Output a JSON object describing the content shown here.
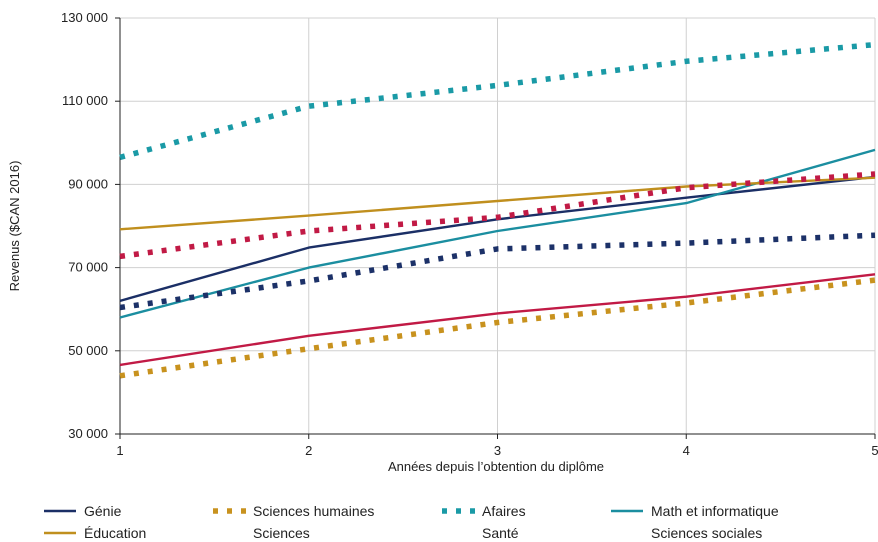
{
  "chart_data": {
    "type": "line",
    "xlabel": "Années depuis l’obtention du diplôme",
    "ylabel": "Revenus ($CAN 2016)",
    "x": [
      1,
      2,
      3,
      4,
      5
    ],
    "xlim": [
      1,
      5
    ],
    "ylim": [
      30000,
      130000
    ],
    "x_ticks": [
      "1",
      "2",
      "3",
      "4",
      "5"
    ],
    "y_ticks": [
      "30 000",
      "50 000",
      "70 000",
      "90 000",
      "110 000",
      "130 000"
    ],
    "y_tick_values": [
      30000,
      50000,
      70000,
      90000,
      110000,
      130000
    ],
    "grid": true,
    "legend_position": "bottom",
    "series": [
      {
        "name": "Génie",
        "values": [
          62000,
          74800,
          81600,
          86800,
          91800
        ],
        "color": "#1b2f66",
        "style": "solid",
        "in_legend": true
      },
      {
        "name": "Sciences humaines",
        "values": [
          44000,
          50500,
          56800,
          61500,
          67000
        ],
        "color": "#c8921e",
        "style": "dotted",
        "in_legend": true
      },
      {
        "name": "Afaires",
        "values": [
          96500,
          108800,
          113800,
          119600,
          123600
        ],
        "color": "#1a9aa6",
        "style": "dotted",
        "in_legend": true
      },
      {
        "name": "Math et informatique",
        "values": [
          58000,
          70000,
          78800,
          85500,
          98300
        ],
        "color": "#1b8ea0",
        "style": "solid",
        "in_legend": true
      },
      {
        "name": "Éducation",
        "values": [
          79200,
          82500,
          86000,
          89500,
          91600
        ],
        "color": "#c08f1e",
        "style": "solid",
        "in_legend": true
      },
      {
        "name": "Sciences",
        "values": [
          60400,
          66800,
          74500,
          75900,
          77800
        ],
        "color": "#1c3168",
        "style": "dotted",
        "in_legend": false
      },
      {
        "name": "Santé",
        "values": [
          72700,
          78800,
          82100,
          89200,
          92500
        ],
        "color": "#c11a45",
        "style": "dotted",
        "in_legend": false
      },
      {
        "name": "Sciences sociales",
        "values": [
          46600,
          53600,
          59000,
          63000,
          68400
        ],
        "color": "#c11a45",
        "style": "solid",
        "in_legend": false
      }
    ],
    "legend": [
      {
        "label": "Génie",
        "color": "#1b2f66",
        "style": "solid"
      },
      {
        "label": "Sciences humaines",
        "color": "#c8921e",
        "style": "dotted"
      },
      {
        "label": "Afaires",
        "color": "#1a9aa6",
        "style": "dotted"
      },
      {
        "label": "Math et informatique",
        "color": "#1b8ea0",
        "style": "solid"
      },
      {
        "label": "Éducation",
        "color": "#c08f1e",
        "style": "solid"
      },
      {
        "label": "Sciences",
        "color": "",
        "style": "none"
      },
      {
        "label": "Santé",
        "color": "",
        "style": "none"
      },
      {
        "label": "Sciences sociales",
        "color": "",
        "style": "none"
      }
    ]
  }
}
